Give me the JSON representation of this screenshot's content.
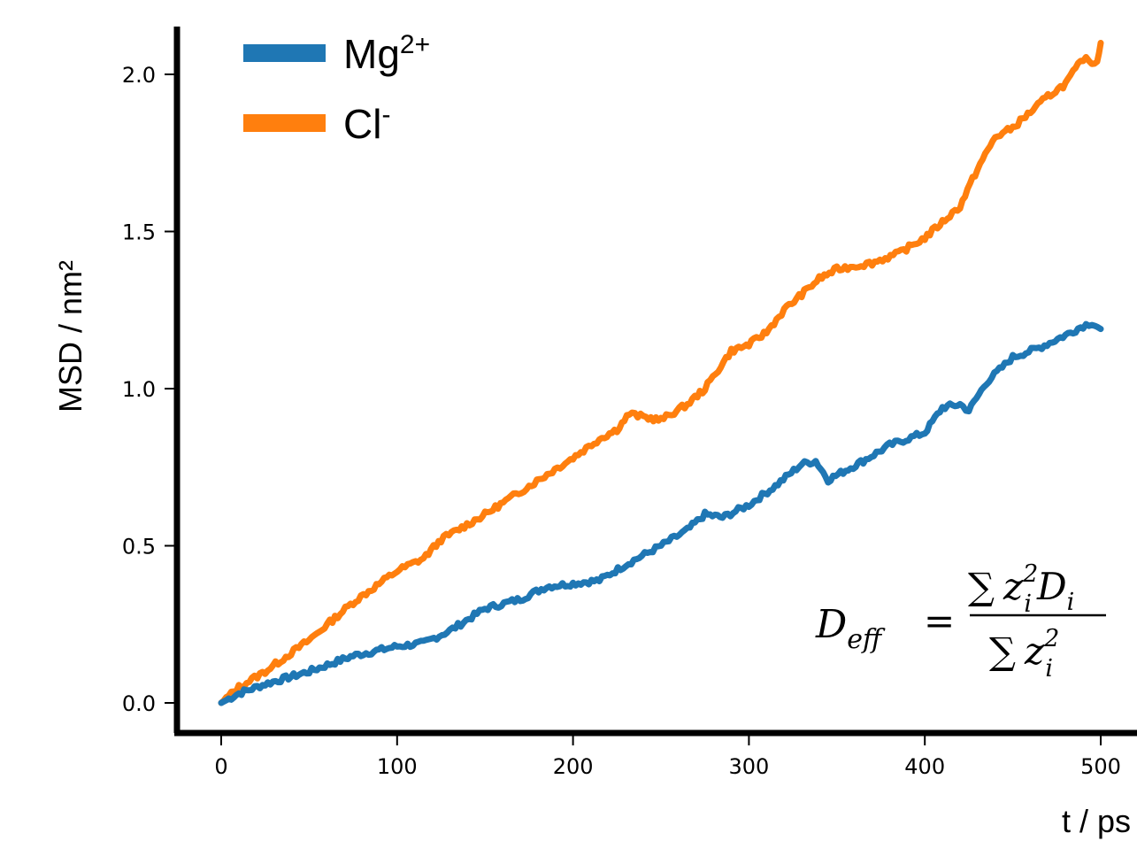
{
  "chart_data": {
    "type": "line",
    "xlabel": "t / ps",
    "ylabel": "MSD / nm²",
    "xlim": [
      -25,
      520
    ],
    "ylim": [
      -0.09,
      2.15
    ],
    "xticks": [
      0,
      100,
      200,
      300,
      400,
      500
    ],
    "xtick_labels": [
      "0",
      "100",
      "200",
      "300",
      "400",
      "500"
    ],
    "yticks": [
      0.0,
      0.5,
      1.0,
      1.5,
      2.0
    ],
    "ytick_labels": [
      "0.0",
      "0.5",
      "1.0",
      "1.5",
      "2.0"
    ],
    "grid": false,
    "legend_position": "top-left",
    "series": [
      {
        "name": "Mg2+",
        "name_base": "Mg",
        "name_sup": "2+",
        "color": "#1f77b4",
        "points": [
          [
            0,
            0
          ],
          [
            10,
            0.03
          ],
          [
            25,
            0.06
          ],
          [
            50,
            0.1
          ],
          [
            75,
            0.15
          ],
          [
            100,
            0.18
          ],
          [
            115,
            0.19
          ],
          [
            130,
            0.23
          ],
          [
            150,
            0.3
          ],
          [
            170,
            0.33
          ],
          [
            185,
            0.37
          ],
          [
            200,
            0.38
          ],
          [
            215,
            0.39
          ],
          [
            230,
            0.44
          ],
          [
            250,
            0.5
          ],
          [
            265,
            0.55
          ],
          [
            275,
            0.6
          ],
          [
            285,
            0.59
          ],
          [
            300,
            0.63
          ],
          [
            315,
            0.69
          ],
          [
            330,
            0.76
          ],
          [
            338,
            0.77
          ],
          [
            345,
            0.71
          ],
          [
            355,
            0.74
          ],
          [
            365,
            0.77
          ],
          [
            380,
            0.82
          ],
          [
            400,
            0.86
          ],
          [
            410,
            0.94
          ],
          [
            420,
            0.95
          ],
          [
            425,
            0.93
          ],
          [
            435,
            1.02
          ],
          [
            450,
            1.1
          ],
          [
            465,
            1.13
          ],
          [
            480,
            1.17
          ],
          [
            490,
            1.2
          ],
          [
            495,
            1.21
          ],
          [
            500,
            1.19
          ]
        ]
      },
      {
        "name": "Cl-",
        "name_base": "Cl",
        "name_sup": "-",
        "color": "#ff7f0e",
        "points": [
          [
            0,
            0
          ],
          [
            10,
            0.05
          ],
          [
            25,
            0.1
          ],
          [
            50,
            0.2
          ],
          [
            75,
            0.32
          ],
          [
            100,
            0.42
          ],
          [
            115,
            0.46
          ],
          [
            125,
            0.52
          ],
          [
            150,
            0.6
          ],
          [
            175,
            0.69
          ],
          [
            200,
            0.78
          ],
          [
            215,
            0.84
          ],
          [
            225,
            0.87
          ],
          [
            232,
            0.92
          ],
          [
            240,
            0.91
          ],
          [
            250,
            0.9
          ],
          [
            265,
            0.95
          ],
          [
            275,
            1.0
          ],
          [
            290,
            1.12
          ],
          [
            300,
            1.14
          ],
          [
            310,
            1.18
          ],
          [
            320,
            1.25
          ],
          [
            330,
            1.3
          ],
          [
            340,
            1.35
          ],
          [
            350,
            1.38
          ],
          [
            370,
            1.4
          ],
          [
            385,
            1.43
          ],
          [
            400,
            1.48
          ],
          [
            410,
            1.53
          ],
          [
            420,
            1.58
          ],
          [
            430,
            1.7
          ],
          [
            440,
            1.8
          ],
          [
            450,
            1.83
          ],
          [
            460,
            1.88
          ],
          [
            470,
            1.93
          ],
          [
            480,
            1.97
          ],
          [
            490,
            2.05
          ],
          [
            495,
            2.04
          ],
          [
            498,
            2.04
          ],
          [
            500,
            2.1
          ]
        ]
      }
    ],
    "annotation": {
      "lhs_main": "D",
      "lhs_sub": "eff",
      "equals": "=",
      "num_sum": "∑",
      "num_z": "z",
      "num_z_sub": "i",
      "num_z_sup": "2",
      "num_d": "D",
      "num_d_sub": "i",
      "den_sum": "∑",
      "den_z": "z",
      "den_z_sub": "i",
      "den_z_sup": "2"
    }
  }
}
